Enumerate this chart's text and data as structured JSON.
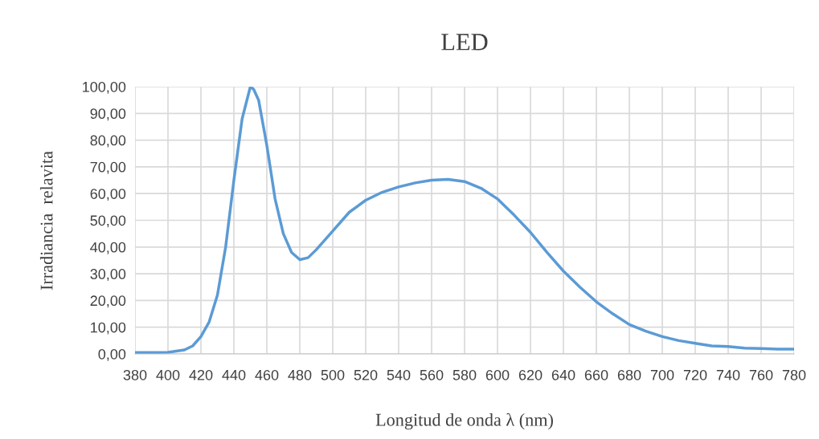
{
  "chart_data": {
    "type": "line",
    "title": "LED",
    "xlabel": "Longitud de onda λ (nm)",
    "ylabel": "Irradiancia  relavita",
    "x": [
      380,
      390,
      400,
      410,
      415,
      420,
      425,
      430,
      435,
      440,
      445,
      450,
      452,
      455,
      460,
      465,
      470,
      475,
      480,
      485,
      490,
      500,
      510,
      520,
      530,
      540,
      550,
      560,
      570,
      580,
      590,
      600,
      610,
      620,
      630,
      640,
      650,
      660,
      670,
      680,
      690,
      700,
      710,
      720,
      730,
      740,
      750,
      760,
      770,
      780
    ],
    "series": [
      {
        "color": "#5b9bd5",
        "values": [
          0.5,
          0.5,
          0.6,
          1.5,
          3,
          6.5,
          12,
          22,
          40,
          65,
          88,
          100,
          99,
          95,
          78,
          58,
          45,
          38,
          35.3,
          36,
          39,
          46,
          53,
          57.5,
          60.5,
          62.5,
          64,
          65,
          65.3,
          64.5,
          62,
          58,
          52,
          45.5,
          38,
          31,
          25,
          19.5,
          15,
          11,
          8.5,
          6.5,
          5,
          4,
          3,
          2.8,
          2.2,
          2,
          1.8,
          1.8
        ]
      }
    ],
    "xlim": [
      380,
      780
    ],
    "xticks": [
      380,
      400,
      420,
      440,
      460,
      480,
      500,
      520,
      540,
      560,
      580,
      600,
      620,
      640,
      660,
      680,
      700,
      720,
      740,
      760,
      780
    ],
    "ylim": [
      0,
      100
    ],
    "yticks": [
      {
        "value": 0,
        "label": "0,00"
      },
      {
        "value": 10,
        "label": "10,00"
      },
      {
        "value": 20,
        "label": "20,00"
      },
      {
        "value": 30,
        "label": "30,00"
      },
      {
        "value": 40,
        "label": "40,00"
      },
      {
        "value": 50,
        "label": "50,00"
      },
      {
        "value": 60,
        "label": "60,00"
      },
      {
        "value": 70,
        "label": "70,00"
      },
      {
        "value": 80,
        "label": "80,00"
      },
      {
        "value": 90,
        "label": "90,00"
      },
      {
        "value": 100,
        "label": "100,00"
      }
    ],
    "grid": true,
    "legend": false,
    "marker": "none",
    "line_style": "solid"
  }
}
